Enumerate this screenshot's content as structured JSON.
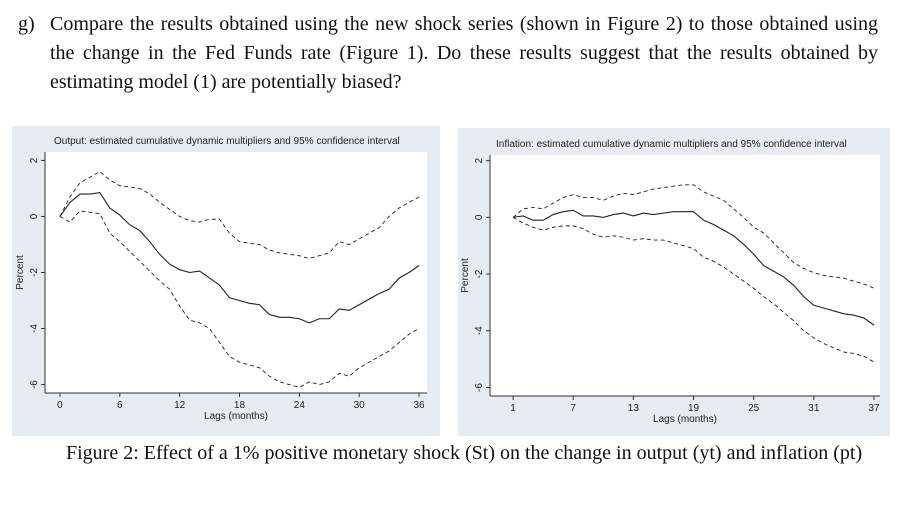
{
  "question": {
    "label": "g)",
    "text": "Compare the results obtained using the new shock series (shown in Figure 2) to those obtained using the change in the Fed Funds rate (Figure 1). Do these results suggest that the results obtained by estimating model (1) are potentially biased?"
  },
  "chart_data": [
    {
      "type": "line",
      "title": "Output: estimated cumulative dynamic multipliers and 95% confidence interval",
      "x_label": "Lags (months)",
      "y_label": "Percent",
      "x": [
        0,
        1,
        2,
        3,
        4,
        5,
        6,
        7,
        8,
        9,
        10,
        11,
        12,
        13,
        14,
        15,
        16,
        17,
        18,
        19,
        20,
        21,
        22,
        23,
        24,
        25,
        26,
        27,
        28,
        29,
        30,
        31,
        32,
        33,
        34,
        35,
        36
      ],
      "series": [
        {
          "color": "#222222",
          "style": "solid",
          "values": [
            0,
            0.5,
            0.8,
            0.8,
            0.85,
            0.3,
            0.05,
            -0.3,
            -0.5,
            -0.9,
            -1.35,
            -1.7,
            -1.9,
            -2.0,
            -1.95,
            -2.2,
            -2.45,
            -2.9,
            -3.0,
            -3.1,
            -3.15,
            -3.5,
            -3.6,
            -3.6,
            -3.65,
            -3.8,
            -3.65,
            -3.65,
            -3.3,
            -3.35,
            -3.15,
            -2.95,
            -2.75,
            -2.6,
            -2.2,
            -2.0,
            -1.75
          ]
        },
        {
          "color": "#222222",
          "style": "dashed",
          "values": [
            0,
            0.7,
            1.2,
            1.4,
            1.6,
            1.3,
            1.1,
            1.05,
            1.0,
            0.8,
            0.5,
            0.25,
            0.0,
            -0.15,
            -0.2,
            -0.1,
            -0.1,
            -0.6,
            -0.9,
            -0.95,
            -1.0,
            -1.2,
            -1.3,
            -1.35,
            -1.4,
            -1.5,
            -1.4,
            -1.3,
            -0.9,
            -1.0,
            -0.8,
            -0.6,
            -0.4,
            0.0,
            0.3,
            0.5,
            0.7
          ]
        },
        {
          "color": "#222222",
          "style": "dashed",
          "values": [
            0,
            -0.2,
            0.2,
            0.15,
            0.1,
            -0.6,
            -0.9,
            -1.25,
            -1.6,
            -1.95,
            -2.3,
            -2.6,
            -3.2,
            -3.7,
            -3.8,
            -4.0,
            -4.5,
            -5.0,
            -5.2,
            -5.3,
            -5.4,
            -5.7,
            -5.9,
            -6.0,
            -6.1,
            -5.9,
            -6.0,
            -5.9,
            -5.6,
            -5.7,
            -5.4,
            -5.2,
            -5.0,
            -4.8,
            -4.5,
            -4.2,
            -4.0
          ]
        }
      ],
      "xlim": [
        -1.5,
        36.8
      ],
      "xticks": [
        0,
        6,
        12,
        18,
        24,
        30,
        36
      ],
      "ylim": [
        -6.3,
        2.3
      ],
      "yticks": [
        -6,
        -4,
        -2,
        0,
        2
      ]
    },
    {
      "type": "line",
      "title": "Inflation: estimated cumulative dynamic multipliers and 95% confidence interval",
      "x_label": "Lags (months)",
      "y_label": "Percent",
      "x": [
        1,
        2,
        3,
        4,
        5,
        6,
        7,
        8,
        9,
        10,
        11,
        12,
        13,
        14,
        15,
        16,
        17,
        18,
        19,
        20,
        21,
        22,
        23,
        24,
        25,
        26,
        27,
        28,
        29,
        30,
        31,
        32,
        33,
        34,
        35,
        36,
        37
      ],
      "series": [
        {
          "color": "#222222",
          "style": "solid",
          "values": [
            0,
            0.05,
            -0.1,
            -0.1,
            0.1,
            0.2,
            0.25,
            0.05,
            0.05,
            0.0,
            0.1,
            0.15,
            0.05,
            0.15,
            0.1,
            0.15,
            0.2,
            0.2,
            0.2,
            -0.1,
            -0.25,
            -0.45,
            -0.65,
            -0.95,
            -1.3,
            -1.7,
            -1.9,
            -2.1,
            -2.4,
            -2.8,
            -3.1,
            -3.2,
            -3.3,
            -3.4,
            -3.45,
            -3.55,
            -3.8
          ]
        },
        {
          "color": "#222222",
          "style": "dashed",
          "values": [
            0,
            0.3,
            0.35,
            0.3,
            0.5,
            0.7,
            0.8,
            0.7,
            0.7,
            0.6,
            0.75,
            0.85,
            0.8,
            0.9,
            1.0,
            1.05,
            1.1,
            1.15,
            1.15,
            0.9,
            0.75,
            0.6,
            0.3,
            0.0,
            -0.35,
            -0.55,
            -0.9,
            -1.25,
            -1.6,
            -1.8,
            -1.95,
            -2.05,
            -2.1,
            -2.15,
            -2.25,
            -2.35,
            -2.5
          ]
        },
        {
          "color": "#222222",
          "style": "dashed",
          "values": [
            0,
            -0.2,
            -0.35,
            -0.45,
            -0.35,
            -0.3,
            -0.3,
            -0.4,
            -0.6,
            -0.7,
            -0.65,
            -0.7,
            -0.8,
            -0.75,
            -0.8,
            -0.8,
            -0.9,
            -1.0,
            -1.1,
            -1.4,
            -1.55,
            -1.75,
            -2.0,
            -2.25,
            -2.5,
            -2.8,
            -3.05,
            -3.35,
            -3.65,
            -4.0,
            -4.25,
            -4.45,
            -4.6,
            -4.75,
            -4.8,
            -4.9,
            -5.1
          ]
        }
      ],
      "xlim": [
        -1.3,
        37.6
      ],
      "xticks": [
        1,
        7,
        13,
        19,
        25,
        31,
        37
      ],
      "ylim": [
        -6.3,
        2.2
      ],
      "yticks": [
        -6,
        -4,
        -2,
        0,
        2
      ]
    }
  ],
  "caption": "Figure 2: Effect of a 1% positive monetary shock (St) on the change in output (yt) and inflation (pt)"
}
